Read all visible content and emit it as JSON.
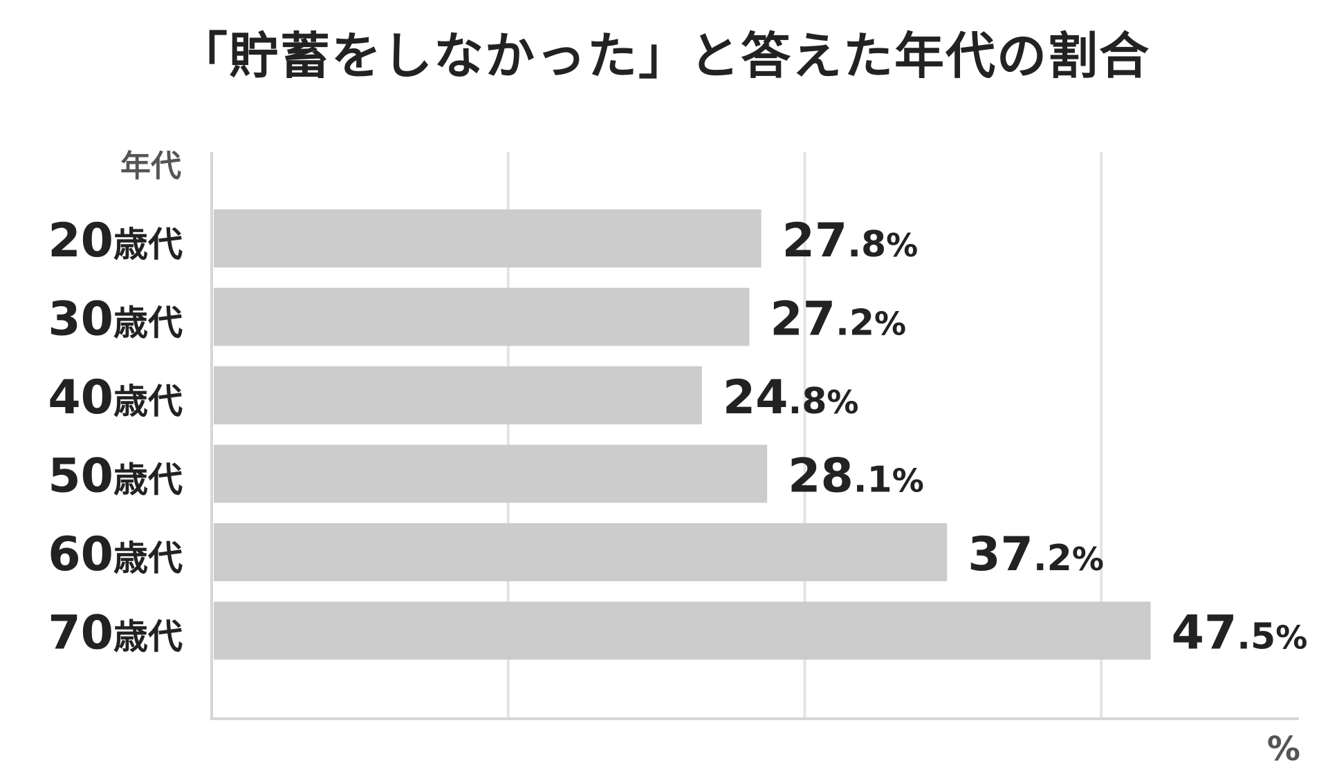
{
  "chart_data": {
    "type": "bar",
    "orientation": "horizontal",
    "title": "「貯蓄をしなかった」と答えた年代の割合",
    "ylabel": "年代",
    "xlabel": "%",
    "categories": [
      {
        "num": "20",
        "suffix": "歳代"
      },
      {
        "num": "30",
        "suffix": "歳代"
      },
      {
        "num": "40",
        "suffix": "歳代"
      },
      {
        "num": "50",
        "suffix": "歳代"
      },
      {
        "num": "60",
        "suffix": "歳代"
      },
      {
        "num": "70",
        "suffix": "歳代"
      }
    ],
    "values": [
      27.8,
      27.2,
      24.8,
      28.1,
      37.2,
      47.5
    ],
    "value_labels": [
      {
        "int": "27",
        "frac": ".8",
        "unit": "%"
      },
      {
        "int": "27",
        "frac": ".2",
        "unit": "%"
      },
      {
        "int": "24",
        "frac": ".8",
        "unit": "%"
      },
      {
        "int": "28",
        "frac": ".1",
        "unit": "%"
      },
      {
        "int": "37",
        "frac": ".2",
        "unit": "%"
      },
      {
        "int": "47",
        "frac": ".5",
        "unit": "%"
      }
    ],
    "xlim": [
      0,
      55
    ],
    "gridlines": [
      0,
      15,
      30,
      45
    ],
    "grid": true,
    "legend": "none",
    "colors": {
      "bar": "#cccccc",
      "grid": "#e3e3e3",
      "axis": "#d6d6d6",
      "text": "#222222",
      "muted": "#555555"
    }
  }
}
